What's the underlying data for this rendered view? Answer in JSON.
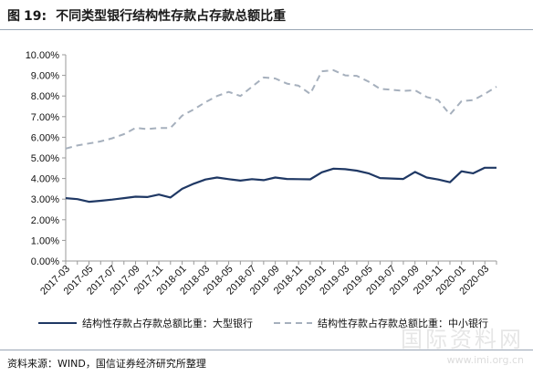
{
  "header": {
    "figure_label": "图",
    "figure_number": "19:",
    "title": "不同类型银行结构性存款占存款总额比重"
  },
  "source_text": "资料来源：WIND，国信证券经济研究所整理",
  "watermark": {
    "text": "国际资料网",
    "url": "www.imi.org.cn"
  },
  "colors": {
    "large_bank": "#1f3864",
    "small_medium_bank": "#a6b0bd",
    "axis": "#999999"
  },
  "chart_data": {
    "type": "line",
    "ylim": [
      0,
      10
    ],
    "yticks": [
      0,
      1,
      2,
      3,
      4,
      5,
      6,
      7,
      8,
      9,
      10
    ],
    "ytick_labels": [
      "0.00%",
      "1.00%",
      "2.00%",
      "3.00%",
      "4.00%",
      "5.00%",
      "6.00%",
      "7.00%",
      "8.00%",
      "9.00%",
      "10.00%"
    ],
    "x": [
      "2017-03",
      "2017-04",
      "2017-05",
      "2017-06",
      "2017-07",
      "2017-08",
      "2017-09",
      "2017-10",
      "2017-11",
      "2017-12",
      "2018-01",
      "2018-02",
      "2018-03",
      "2018-04",
      "2018-05",
      "2018-06",
      "2018-07",
      "2018-08",
      "2018-09",
      "2018-10",
      "2018-11",
      "2018-12",
      "2019-01",
      "2019-02",
      "2019-03",
      "2019-04",
      "2019-05",
      "2019-06",
      "2019-07",
      "2019-08",
      "2019-09",
      "2019-10",
      "2019-11",
      "2019-12",
      "2020-01",
      "2020-02",
      "2020-03",
      "2020-04"
    ],
    "xtick_labels": [
      "2017-03",
      "2017-05",
      "2017-07",
      "2017-09",
      "2017-11",
      "2018-01",
      "2018-03",
      "2018-05",
      "2018-07",
      "2018-09",
      "2018-11",
      "2019-01",
      "2019-03",
      "2019-05",
      "2019-07",
      "2019-09",
      "2019-11",
      "2020-01",
      "2020-03"
    ],
    "series": [
      {
        "name": "结构性存款占存款总额比重：大型银行",
        "style": "solid",
        "values": [
          3.05,
          3.0,
          2.87,
          2.92,
          2.98,
          3.05,
          3.12,
          3.1,
          3.22,
          3.08,
          3.5,
          3.75,
          3.95,
          4.05,
          3.97,
          3.9,
          3.97,
          3.92,
          4.05,
          3.98,
          3.97,
          3.96,
          4.3,
          4.48,
          4.45,
          4.38,
          4.25,
          4.02,
          4.0,
          3.98,
          4.32,
          4.05,
          3.95,
          3.82,
          4.35,
          4.25,
          4.52,
          4.52
        ]
      },
      {
        "name": "结构性存款占存款总额比重：中小银行",
        "style": "dashed",
        "values": [
          5.45,
          5.6,
          5.7,
          5.8,
          5.95,
          6.15,
          6.45,
          6.4,
          6.45,
          6.45,
          7.05,
          7.35,
          7.7,
          8.0,
          8.2,
          8.0,
          8.45,
          8.9,
          8.85,
          8.6,
          8.5,
          8.1,
          9.2,
          9.25,
          9.0,
          8.98,
          8.7,
          8.35,
          8.3,
          8.25,
          8.28,
          7.95,
          7.8,
          7.1,
          7.75,
          7.8,
          8.1,
          8.45
        ]
      }
    ],
    "legend_position": "bottom",
    "grid": false
  }
}
